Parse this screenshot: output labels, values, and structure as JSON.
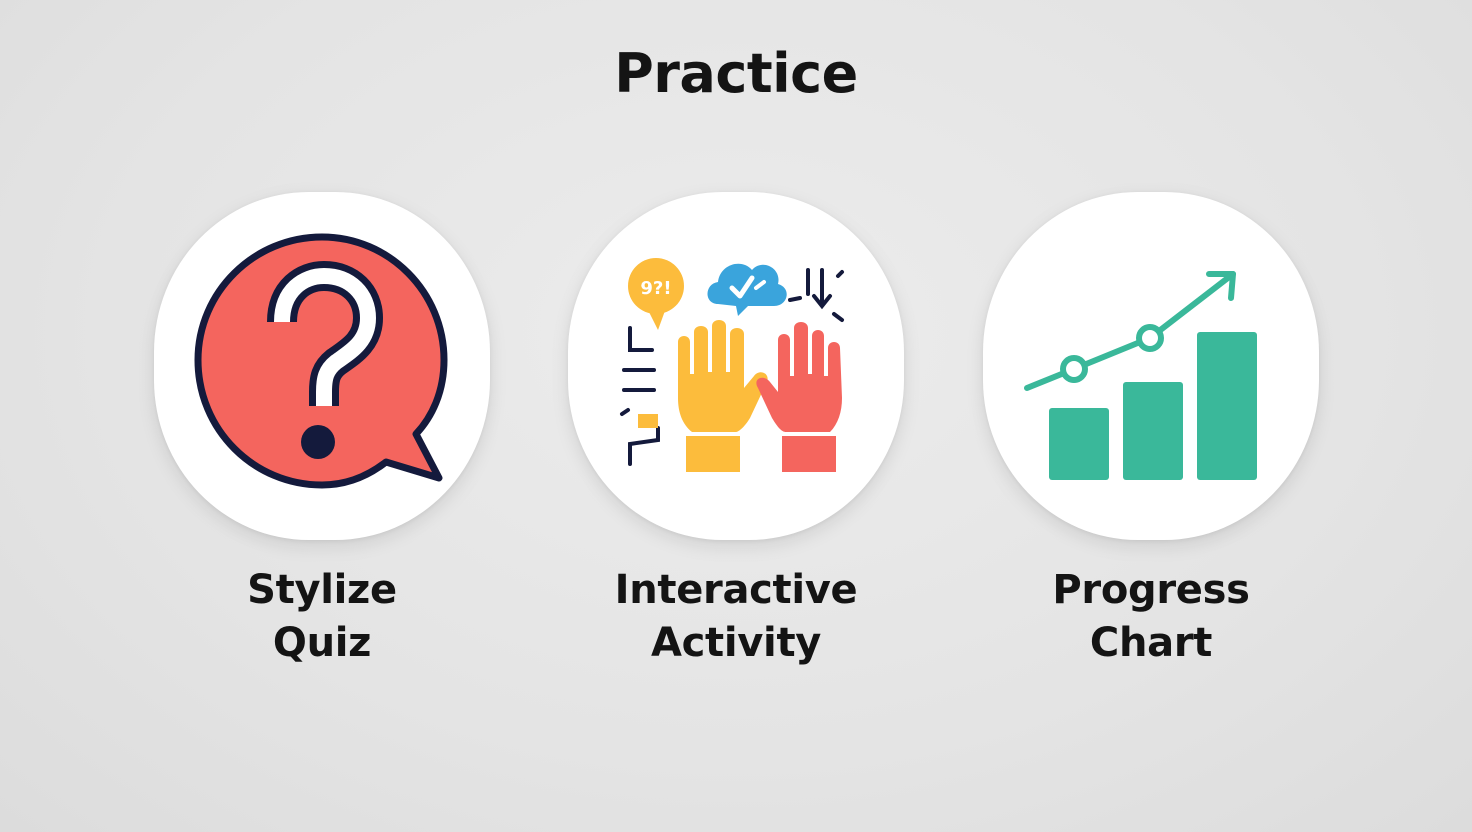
{
  "page": {
    "title": "Practice"
  },
  "tiles": [
    {
      "label_line1": "Stylize",
      "label_line2": "Quiz",
      "icon": "question-bubble-icon"
    },
    {
      "label_line1": "Interactive",
      "label_line2": "Activity",
      "icon": "raised-hands-icon",
      "bubble_text": "9?!"
    },
    {
      "label_line1": "Progress",
      "label_line2": "Chart",
      "icon": "bar-chart-trend-icon"
    }
  ],
  "colors": {
    "coral": "#f4655e",
    "navy": "#141a3c",
    "yellow": "#fcbc3c",
    "blue": "#3aa4dc",
    "teal": "#3ab89a",
    "background": "#e4e4e4"
  }
}
